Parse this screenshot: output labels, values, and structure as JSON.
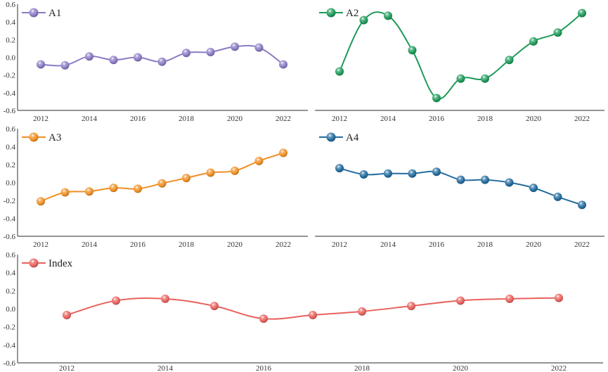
{
  "chart_data": [
    {
      "type": "line",
      "title": "",
      "xlabel": "",
      "ylabel": "",
      "x": [
        2012,
        2013,
        2014,
        2015,
        2016,
        2017,
        2018,
        2019,
        2020,
        2021,
        2022
      ],
      "xticks": [
        "2012",
        "2014",
        "2016",
        "2018",
        "2020",
        "2022"
      ],
      "yticks": [
        "0.6",
        "0.4",
        "0.2",
        "0.0",
        "-0.2",
        "-0.4",
        "-0.6"
      ],
      "ylim": [
        -0.6,
        0.6
      ],
      "grid": false,
      "legend": "top-left",
      "smooth": true,
      "show_yaxis": true,
      "series": [
        {
          "name": "A1",
          "color": "#8b7bc4",
          "values": [
            -0.08,
            -0.09,
            0.01,
            -0.03,
            0.0,
            -0.05,
            0.05,
            0.06,
            0.12,
            0.11,
            -0.08
          ]
        }
      ]
    },
    {
      "type": "line",
      "title": "",
      "xlabel": "",
      "ylabel": "",
      "x": [
        2012,
        2013,
        2014,
        2015,
        2016,
        2017,
        2018,
        2019,
        2020,
        2021,
        2022
      ],
      "xticks": [
        "2012",
        "2014",
        "2016",
        "2018",
        "2020",
        "2022"
      ],
      "ylim": [
        -0.6,
        0.6
      ],
      "grid": false,
      "legend": "top-left",
      "smooth": true,
      "show_yaxis": false,
      "series": [
        {
          "name": "A2",
          "color": "#1f9a5a",
          "values": [
            -0.16,
            0.42,
            0.47,
            0.08,
            -0.46,
            -0.24,
            -0.24,
            -0.03,
            0.18,
            0.28,
            0.5
          ]
        }
      ]
    },
    {
      "type": "line",
      "title": "",
      "xlabel": "",
      "ylabel": "",
      "x": [
        2012,
        2013,
        2014,
        2015,
        2016,
        2017,
        2018,
        2019,
        2020,
        2021,
        2022
      ],
      "xticks": [
        "2012",
        "2014",
        "2016",
        "2018",
        "2020",
        "2022"
      ],
      "yticks": [
        "0.6",
        "0.4",
        "0.2",
        "0.0",
        "-0.2",
        "-0.4",
        "-0.6"
      ],
      "ylim": [
        -0.6,
        0.6
      ],
      "grid": false,
      "legend": "top-left",
      "smooth": true,
      "show_yaxis": true,
      "series": [
        {
          "name": "A3",
          "color": "#f08f24",
          "values": [
            -0.21,
            -0.11,
            -0.1,
            -0.06,
            -0.07,
            -0.01,
            0.05,
            0.11,
            0.13,
            0.24,
            0.33
          ]
        }
      ]
    },
    {
      "type": "line",
      "title": "",
      "xlabel": "",
      "ylabel": "",
      "x": [
        2012,
        2013,
        2014,
        2015,
        2016,
        2017,
        2018,
        2019,
        2020,
        2021,
        2022
      ],
      "xticks": [
        "2012",
        "2014",
        "2016",
        "2018",
        "2020",
        "2022"
      ],
      "ylim": [
        -0.6,
        0.6
      ],
      "grid": false,
      "legend": "top-left",
      "smooth": true,
      "show_yaxis": false,
      "series": [
        {
          "name": "A4",
          "color": "#246c9e",
          "values": [
            0.16,
            0.09,
            0.1,
            0.1,
            0.12,
            0.03,
            0.03,
            0.0,
            -0.06,
            -0.16,
            -0.25
          ]
        }
      ]
    },
    {
      "type": "line",
      "title": "",
      "xlabel": "",
      "ylabel": "",
      "x": [
        2012,
        2013,
        2014,
        2015,
        2016,
        2017,
        2018,
        2019,
        2020,
        2021,
        2022
      ],
      "xticks": [
        "2012",
        "2014",
        "2016",
        "2018",
        "2020",
        "2022"
      ],
      "yticks": [
        "0.6",
        "0.4",
        "0.2",
        "0.0",
        "-0.2",
        "-0.4",
        "-0.6"
      ],
      "ylim": [
        -0.6,
        0.6
      ],
      "grid": false,
      "legend": "top-left",
      "smooth": true,
      "show_yaxis": true,
      "series": [
        {
          "name": "Index",
          "color": "#e8625e",
          "values": [
            -0.07,
            0.09,
            0.11,
            0.03,
            -0.11,
            -0.07,
            -0.03,
            0.03,
            0.09,
            0.11,
            0.12
          ]
        }
      ]
    }
  ]
}
